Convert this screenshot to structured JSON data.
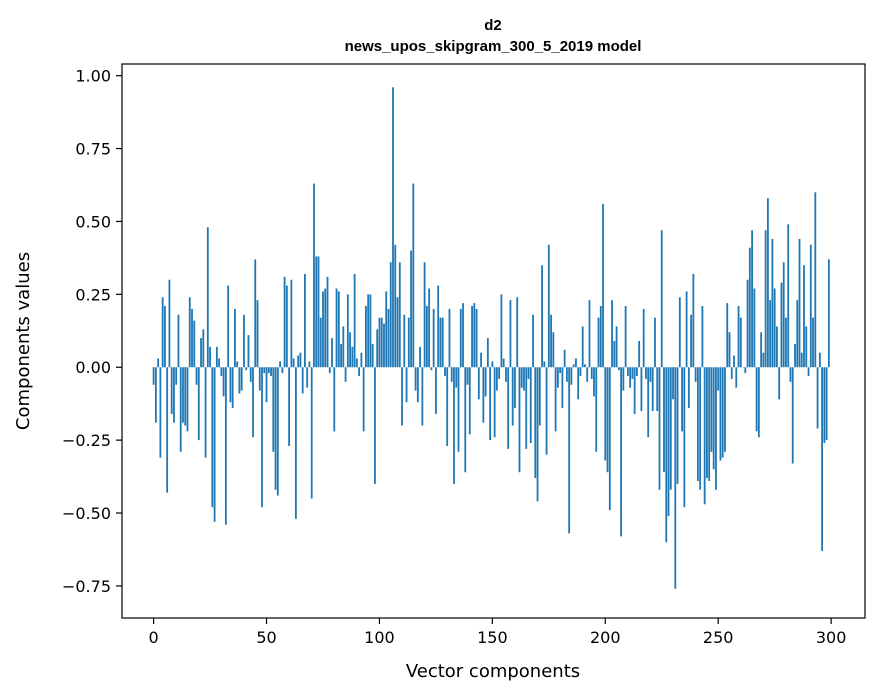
{
  "chart_data": {
    "type": "bar",
    "title": "d2",
    "subtitle": "news_upos_skipgram_300_5_2019 model",
    "xlabel": "Vector components",
    "ylabel": "Components values",
    "xlim": [
      -14,
      315
    ],
    "ylim": [
      -0.86,
      1.04
    ],
    "xticks": [
      0,
      50,
      100,
      150,
      200,
      250,
      300
    ],
    "yticks": [
      -0.75,
      -0.5,
      -0.25,
      0.0,
      0.25,
      0.5,
      0.75,
      1.0
    ],
    "xtick_labels": [
      "0",
      "50",
      "100",
      "150",
      "200",
      "250",
      "300"
    ],
    "ytick_labels": [
      "−0.75",
      "−0.50",
      "−0.25",
      "0.00",
      "0.25",
      "0.50",
      "0.75",
      "1.00"
    ],
    "bar_color": "#1f77b4",
    "grid": false,
    "x": [
      0,
      1,
      2,
      3,
      4,
      5,
      6,
      7,
      8,
      9,
      10,
      11,
      12,
      13,
      14,
      15,
      16,
      17,
      18,
      19,
      20,
      21,
      22,
      23,
      24,
      25,
      26,
      27,
      28,
      29,
      30,
      31,
      32,
      33,
      34,
      35,
      36,
      37,
      38,
      39,
      40,
      41,
      42,
      43,
      44,
      45,
      46,
      47,
      48,
      49,
      50,
      51,
      52,
      53,
      54,
      55,
      56,
      57,
      58,
      59,
      60,
      61,
      62,
      63,
      64,
      65,
      66,
      67,
      68,
      69,
      70,
      71,
      72,
      73,
      74,
      75,
      76,
      77,
      78,
      79,
      80,
      81,
      82,
      83,
      84,
      85,
      86,
      87,
      88,
      89,
      90,
      91,
      92,
      93,
      94,
      95,
      96,
      97,
      98,
      99,
      100,
      101,
      102,
      103,
      104,
      105,
      106,
      107,
      108,
      109,
      110,
      111,
      112,
      113,
      114,
      115,
      116,
      117,
      118,
      119,
      120,
      121,
      122,
      123,
      124,
      125,
      126,
      127,
      128,
      129,
      130,
      131,
      132,
      133,
      134,
      135,
      136,
      137,
      138,
      139,
      140,
      141,
      142,
      143,
      144,
      145,
      146,
      147,
      148,
      149,
      150,
      151,
      152,
      153,
      154,
      155,
      156,
      157,
      158,
      159,
      160,
      161,
      162,
      163,
      164,
      165,
      166,
      167,
      168,
      169,
      170,
      171,
      172,
      173,
      174,
      175,
      176,
      177,
      178,
      179,
      180,
      181,
      182,
      183,
      184,
      185,
      186,
      187,
      188,
      189,
      190,
      191,
      192,
      193,
      194,
      195,
      196,
      197,
      198,
      199,
      200,
      201,
      202,
      203,
      204,
      205,
      206,
      207,
      208,
      209,
      210,
      211,
      212,
      213,
      214,
      215,
      216,
      217,
      218,
      219,
      220,
      221,
      222,
      223,
      224,
      225,
      226,
      227,
      228,
      229,
      230,
      231,
      232,
      233,
      234,
      235,
      236,
      237,
      238,
      239,
      240,
      241,
      242,
      243,
      244,
      245,
      246,
      247,
      248,
      249,
      250,
      251,
      252,
      253,
      254,
      255,
      256,
      257,
      258,
      259,
      260,
      261,
      262,
      263,
      264,
      265,
      266,
      267,
      268,
      269,
      270,
      271,
      272,
      273,
      274,
      275,
      276,
      277,
      278,
      279,
      280,
      281,
      282,
      283,
      284,
      285,
      286,
      287,
      288,
      289,
      290,
      291,
      292,
      293,
      294,
      295,
      296,
      297,
      298,
      299
    ],
    "values": [
      -0.06,
      -0.19,
      0.03,
      -0.31,
      0.24,
      0.21,
      -0.43,
      0.3,
      -0.16,
      -0.19,
      -0.06,
      0.18,
      -0.29,
      -0.19,
      -0.2,
      -0.22,
      0.24,
      0.2,
      0.16,
      -0.06,
      -0.25,
      0.1,
      0.13,
      -0.31,
      0.48,
      0.07,
      -0.48,
      -0.53,
      0.07,
      0.03,
      -0.03,
      -0.1,
      -0.54,
      0.28,
      -0.12,
      -0.14,
      0.2,
      0.02,
      -0.09,
      -0.08,
      0.18,
      -0.01,
      0.11,
      -0.05,
      -0.24,
      0.37,
      0.23,
      -0.08,
      -0.48,
      -0.02,
      -0.12,
      -0.02,
      -0.03,
      -0.29,
      -0.42,
      -0.44,
      0.02,
      -0.02,
      0.31,
      0.28,
      -0.27,
      0.3,
      0.03,
      -0.52,
      0.04,
      0.05,
      -0.09,
      0.32,
      -0.07,
      0.02,
      -0.45,
      0.63,
      0.38,
      0.38,
      0.17,
      0.26,
      0.27,
      0.31,
      -0.02,
      0.1,
      -0.22,
      0.27,
      0.26,
      0.08,
      0.14,
      -0.05,
      0.25,
      0.12,
      0.07,
      0.32,
      0.03,
      -0.03,
      0.05,
      -0.22,
      0.21,
      0.25,
      0.25,
      0.08,
      -0.4,
      0.13,
      0.17,
      0.17,
      0.15,
      0.26,
      0.2,
      0.36,
      0.96,
      0.42,
      0.24,
      0.36,
      -0.2,
      0.18,
      -0.12,
      0.17,
      0.4,
      0.63,
      -0.08,
      -0.12,
      0.07,
      -0.2,
      0.36,
      0.21,
      0.27,
      -0.01,
      0.2,
      -0.16,
      0.28,
      0.17,
      0.17,
      -0.03,
      -0.27,
      0.2,
      -0.05,
      -0.4,
      -0.07,
      -0.29,
      0.2,
      0.22,
      -0.36,
      -0.06,
      -0.23,
      0.21,
      0.22,
      0.2,
      -0.11,
      0.05,
      -0.19,
      -0.1,
      0.1,
      -0.25,
      0.02,
      -0.24,
      -0.08,
      -0.04,
      0.25,
      0.03,
      -0.05,
      -0.28,
      0.23,
      -0.2,
      -0.14,
      0.24,
      -0.36,
      -0.07,
      -0.08,
      -0.28,
      -0.04,
      -0.26,
      0.18,
      -0.38,
      -0.46,
      -0.2,
      0.35,
      0.02,
      -0.3,
      0.42,
      0.18,
      0.12,
      -0.22,
      -0.07,
      -0.02,
      -0.14,
      0.06,
      -0.05,
      -0.57,
      -0.06,
      0.01,
      0.03,
      -0.11,
      -0.03,
      0.14,
      0.01,
      -0.05,
      0.23,
      -0.04,
      -0.1,
      -0.29,
      0.17,
      0.21,
      0.56,
      -0.32,
      -0.36,
      -0.49,
      0.23,
      0.09,
      0.14,
      -0.01,
      -0.58,
      -0.08,
      0.21,
      -0.03,
      -0.07,
      -0.04,
      -0.16,
      -0.03,
      0.09,
      -0.15,
      0.2,
      -0.04,
      -0.24,
      -0.05,
      -0.15,
      0.17,
      -0.15,
      -0.42,
      0.47,
      -0.36,
      -0.6,
      -0.51,
      -0.42,
      -0.11,
      -0.76,
      -0.4,
      0.24,
      -0.22,
      -0.48,
      0.26,
      -0.14,
      0.18,
      0.32,
      -0.05,
      -0.39,
      -0.42,
      0.21,
      -0.47,
      -0.38,
      -0.39,
      -0.29,
      -0.35,
      -0.42,
      -0.08,
      -0.32,
      -0.31,
      -0.29,
      0.22,
      0.12,
      -0.04,
      0.04,
      -0.07,
      0.21,
      0.17,
      0.0,
      -0.02,
      0.3,
      0.41,
      0.47,
      0.27,
      -0.22,
      -0.24,
      0.12,
      0.05,
      0.47,
      0.58,
      0.23,
      0.44,
      0.27,
      0.14,
      -0.11,
      0.29,
      0.36,
      0.17,
      0.49,
      -0.05,
      -0.33,
      0.08,
      0.23,
      0.44,
      0.05,
      0.35,
      0.14,
      -0.03,
      0.42,
      0.17,
      0.6,
      -0.21,
      0.05,
      -0.63,
      -0.26,
      -0.25,
      0.37
    ]
  }
}
